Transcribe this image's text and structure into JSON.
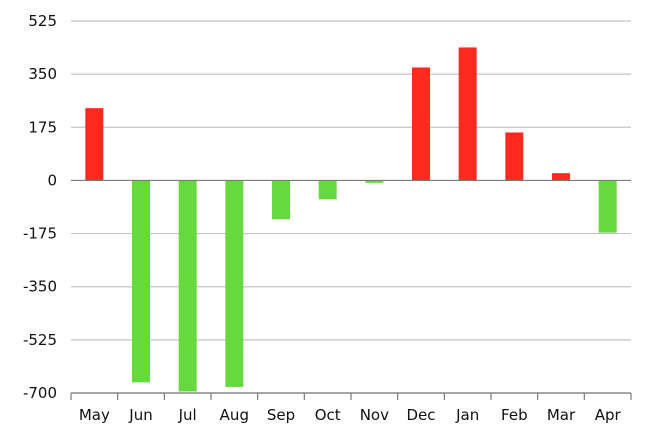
{
  "chart_data": {
    "type": "bar",
    "title": "",
    "xlabel": "",
    "ylabel": "",
    "categories": [
      "May",
      "Jun",
      "Jul",
      "Aug",
      "Sep",
      "Oct",
      "Nov",
      "Dec",
      "Jan",
      "Feb",
      "Mar",
      "Apr"
    ],
    "values": [
      238,
      -665,
      -695,
      -680,
      -128,
      -62,
      -8,
      372,
      438,
      158,
      24,
      -172
    ],
    "ylim": [
      -700,
      525
    ],
    "yticks": [
      525,
      350,
      175,
      0,
      -175,
      -350,
      -525,
      -700
    ],
    "ytick_labels": [
      "525",
      "350",
      "175",
      "0",
      "-175",
      "-350",
      "-525",
      "-700"
    ],
    "grid": true,
    "legend": "none",
    "colors": {
      "positive": "#ff2a1f",
      "negative": "#66d93f",
      "grid": "#c4c4c4",
      "axis": "#7a7a7a"
    }
  }
}
